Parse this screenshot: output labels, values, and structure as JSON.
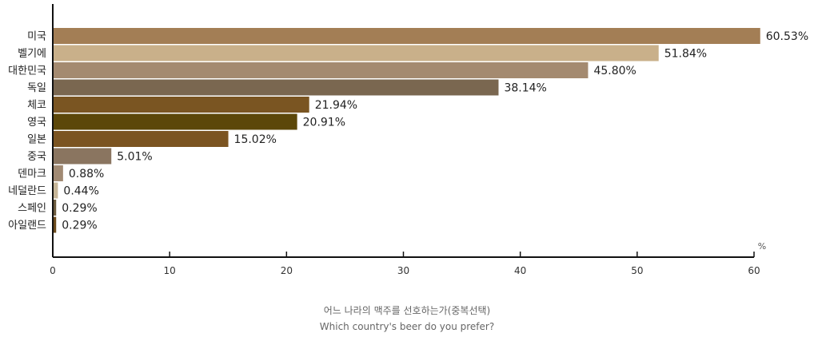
{
  "chart_data": {
    "type": "bar",
    "orientation": "horizontal",
    "title": "어느 나라의 맥주를 선호하는가(중복선택)",
    "subtitle": "Which country's beer do you prefer?",
    "unit": "%",
    "xlim": [
      0,
      60
    ],
    "ticks": [
      "0",
      "10",
      "20",
      "30",
      "40",
      "50",
      "60"
    ],
    "grid": false,
    "categories": [
      "미국",
      "벨기에",
      "대한민국",
      "독일",
      "체코",
      "영국",
      "일본",
      "중국",
      "덴마크",
      "네덜란드",
      "스페인",
      "아일랜드"
    ],
    "values": [
      60.53,
      51.84,
      45.8,
      38.14,
      21.94,
      20.91,
      15.02,
      5.01,
      0.88,
      0.44,
      0.29,
      0.29
    ],
    "value_labels": [
      "60.53%",
      "51.84%",
      "45.80%",
      "38.14%",
      "21.94%",
      "20.91%",
      "15.02%",
      "5.01%",
      "0.88%",
      "0.44%",
      "0.29%",
      "0.29%"
    ],
    "colors": [
      "#A37E55",
      "#C9B08A",
      "#A48A70",
      "#7A6750",
      "#7A5522",
      "#5C4709",
      "#7B5421",
      "#8A7560",
      "#A18A73",
      "#C6B597",
      "#6B5A3E",
      "#6B4A1C"
    ]
  }
}
